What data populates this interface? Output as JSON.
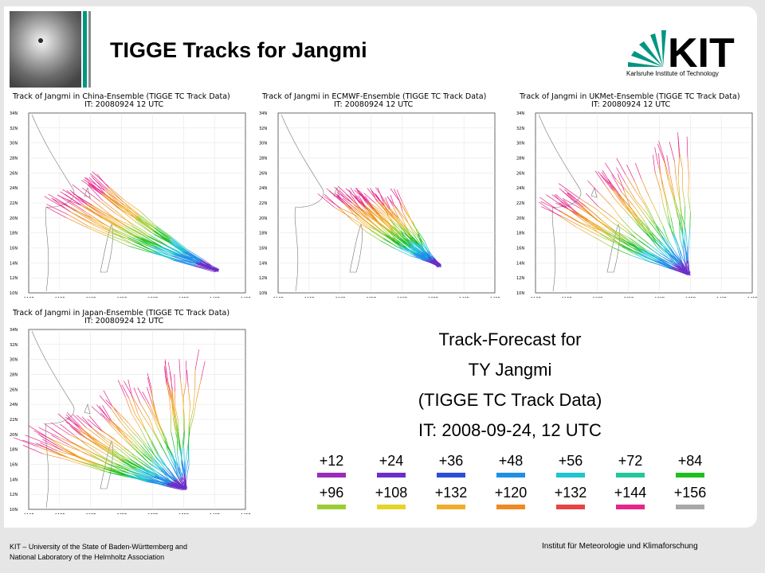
{
  "title": "TIGGE Tracks for Jangmi",
  "logo": {
    "text": "KIT",
    "subtitle": "Karlsruhe Institute of Technology"
  },
  "maps": [
    {
      "title_line1": "Track of Jangmi in China-Ensemble (TIGGE TC Track Data)",
      "title_line2": "IT: 20080924 12 UTC"
    },
    {
      "title_line1": "Track of Jangmi in ECMWF-Ensemble (TIGGE TC Track Data)",
      "title_line2": "IT: 20080924 12 UTC"
    },
    {
      "title_line1": "Track of Jangmi in UKMet-Ensemble (TIGGE TC Track Data)",
      "title_line2": "IT: 20080924 12 UTC"
    },
    {
      "title_line1": "Track of Jangmi in Japan-Ensemble (TIGGE TC Track Data)",
      "title_line2": "IT: 20080924 12 UTC"
    }
  ],
  "axis": {
    "lat_labels": [
      "34N",
      "32N",
      "30N",
      "28N",
      "26N",
      "24N",
      "22N",
      "20N",
      "18N",
      "16N",
      "14N",
      "12N",
      "10N"
    ],
    "lon_labels": [
      "110E",
      "115E",
      "120E",
      "125E",
      "130E",
      "135E",
      "140E",
      "145E"
    ]
  },
  "info": {
    "line1": "Track-Forecast for",
    "line2": "TY Jangmi",
    "line3": "(TIGGE TC Track Data)",
    "line4": "IT: 2008-09-24, 12 UTC"
  },
  "legend": {
    "row1": [
      {
        "label": "+12",
        "color": "#9b2bb8"
      },
      {
        "label": "+24",
        "color": "#6a2fc9"
      },
      {
        "label": "+36",
        "color": "#2a4fd6"
      },
      {
        "label": "+48",
        "color": "#1f8fe6"
      },
      {
        "label": "+56",
        "color": "#1fc4cf"
      },
      {
        "label": "+72",
        "color": "#22c79a"
      },
      {
        "label": "+84",
        "color": "#1fbf1f"
      }
    ],
    "row2": [
      {
        "label": "+96",
        "color": "#9ccc34"
      },
      {
        "label": "+108",
        "color": "#e3d52a"
      },
      {
        "label": "+132",
        "color": "#efae2a"
      },
      {
        "label": "+120",
        "color": "#ee8a22"
      },
      {
        "label": "+132",
        "color": "#e64545"
      },
      {
        "label": "+144",
        "color": "#e6268a"
      },
      {
        "label": "+156",
        "color": "#a8a8a8"
      }
    ]
  },
  "footer": {
    "left_line1": "KIT – University of the State of Baden-Württemberg and",
    "left_line2": "National Laboratory of the Helmholtz Association",
    "right": "Institut für Meteorologie und Klimaforschung"
  }
}
